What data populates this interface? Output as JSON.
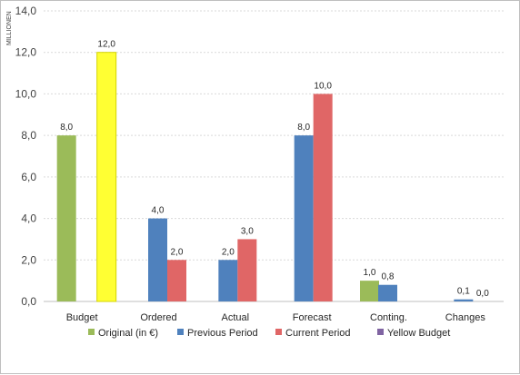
{
  "chart_data": {
    "type": "bar",
    "unit_label": "MILLIONEN",
    "categories": [
      "Budget",
      "Ordered",
      "Actual",
      "Forecast",
      "Conting.",
      "Changes"
    ],
    "ylim": [
      0,
      14
    ],
    "yticks": [
      "0,0",
      "2,0",
      "4,0",
      "6,0",
      "8,0",
      "10,0",
      "12,0",
      "14,0"
    ],
    "ytick_values": [
      0,
      2,
      4,
      6,
      8,
      10,
      12,
      14
    ],
    "grid": true,
    "legend_position": "bottom",
    "series": [
      {
        "name": "Original (in €)",
        "color": "#9bbb59",
        "values": [
          8.0,
          null,
          null,
          null,
          1.0,
          null
        ],
        "labels": [
          "8,0",
          null,
          null,
          null,
          "1,0",
          null
        ]
      },
      {
        "name": "Previous Period",
        "color": "#4f81bd",
        "values": [
          null,
          4.0,
          2.0,
          8.0,
          0.8,
          0.1
        ],
        "labels": [
          null,
          "4,0",
          "2,0",
          "8,0",
          "0,8",
          "0,1"
        ]
      },
      {
        "name": "Current Period",
        "color": "#e06666",
        "values": [
          null,
          2.0,
          3.0,
          10.0,
          null,
          0.0
        ],
        "labels": [
          null,
          "2,0",
          "3,0",
          "10,0",
          null,
          "0,0"
        ]
      },
      {
        "name": "Yellow Budget",
        "color": "#8064a2",
        "values": [
          12.0,
          null,
          null,
          null,
          null,
          null
        ],
        "labels": [
          "12,0",
          null,
          null,
          null,
          null,
          null
        ]
      }
    ],
    "budget_bar_color": "#ffff33"
  }
}
